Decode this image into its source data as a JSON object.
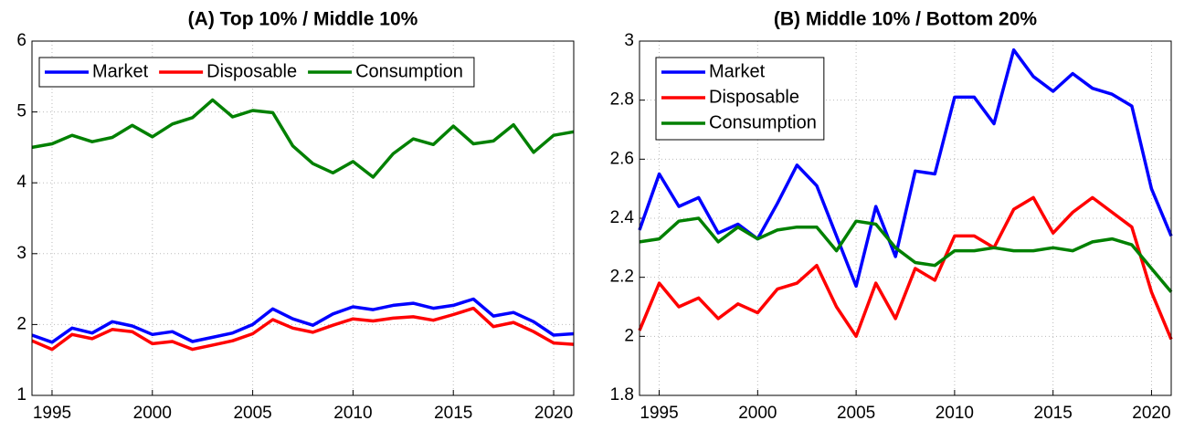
{
  "chart_data": [
    {
      "type": "line",
      "title": "(A) Top 10% / Middle 10%",
      "x": [
        1994,
        1995,
        1996,
        1997,
        1998,
        1999,
        2000,
        2001,
        2002,
        2003,
        2004,
        2005,
        2006,
        2007,
        2008,
        2009,
        2010,
        2011,
        2012,
        2013,
        2014,
        2015,
        2016,
        2017,
        2018,
        2019,
        2020,
        2021
      ],
      "xlim": [
        1994,
        2021
      ],
      "xticks": [
        1995,
        2000,
        2005,
        2010,
        2015,
        2020
      ],
      "ylim": [
        1,
        6
      ],
      "yticks": [
        1,
        2,
        3,
        4,
        5,
        6
      ],
      "grid": true,
      "legend": "top-left",
      "legend_orientation": "horizontal",
      "series": [
        {
          "name": "Market",
          "color": "#0000ff",
          "values": [
            1.85,
            1.75,
            1.95,
            1.88,
            2.04,
            1.98,
            1.86,
            1.9,
            1.76,
            1.82,
            1.88,
            2.0,
            2.22,
            2.08,
            1.99,
            2.15,
            2.25,
            2.21,
            2.27,
            2.3,
            2.23,
            2.27,
            2.36,
            2.12,
            2.17,
            2.04,
            1.85,
            1.87
          ]
        },
        {
          "name": "Disposable",
          "color": "#ff0000",
          "values": [
            1.77,
            1.65,
            1.86,
            1.8,
            1.93,
            1.9,
            1.73,
            1.76,
            1.65,
            1.71,
            1.77,
            1.87,
            2.07,
            1.95,
            1.89,
            1.99,
            2.08,
            2.05,
            2.09,
            2.11,
            2.06,
            2.14,
            2.23,
            1.97,
            2.03,
            1.9,
            1.74,
            1.72
          ]
        },
        {
          "name": "Consumption",
          "color": "#008000",
          "values": [
            4.5,
            4.55,
            4.67,
            4.58,
            4.64,
            4.81,
            4.65,
            4.83,
            4.92,
            5.17,
            4.93,
            5.02,
            4.99,
            4.52,
            4.27,
            4.14,
            4.3,
            4.08,
            4.41,
            4.62,
            4.54,
            4.8,
            4.55,
            4.59,
            4.82,
            4.43,
            4.67,
            4.72
          ]
        }
      ]
    },
    {
      "type": "line",
      "title": "(B) Middle 10% / Bottom 20%",
      "x": [
        1994,
        1995,
        1996,
        1997,
        1998,
        1999,
        2000,
        2001,
        2002,
        2003,
        2004,
        2005,
        2006,
        2007,
        2008,
        2009,
        2010,
        2011,
        2012,
        2013,
        2014,
        2015,
        2016,
        2017,
        2018,
        2019,
        2020,
        2021
      ],
      "xlim": [
        1994,
        2021
      ],
      "xticks": [
        1995,
        2000,
        2005,
        2010,
        2015,
        2020
      ],
      "ylim": [
        1.8,
        3
      ],
      "yticks": [
        1.8,
        2,
        2.2,
        2.4,
        2.6,
        2.8,
        3
      ],
      "grid": true,
      "legend": "top-left",
      "legend_orientation": "vertical",
      "series": [
        {
          "name": "Market",
          "color": "#0000ff",
          "values": [
            2.36,
            2.55,
            2.44,
            2.47,
            2.35,
            2.38,
            2.33,
            2.45,
            2.58,
            2.51,
            2.34,
            2.17,
            2.44,
            2.27,
            2.56,
            2.55,
            2.81,
            2.81,
            2.72,
            2.97,
            2.88,
            2.83,
            2.89,
            2.84,
            2.82,
            2.78,
            2.5,
            2.34
          ]
        },
        {
          "name": "Disposable",
          "color": "#ff0000",
          "values": [
            2.02,
            2.18,
            2.1,
            2.13,
            2.06,
            2.11,
            2.08,
            2.16,
            2.18,
            2.24,
            2.1,
            2.0,
            2.18,
            2.06,
            2.23,
            2.19,
            2.34,
            2.34,
            2.3,
            2.43,
            2.47,
            2.35,
            2.42,
            2.47,
            2.42,
            2.37,
            2.15,
            1.99
          ]
        },
        {
          "name": "Consumption",
          "color": "#008000",
          "values": [
            2.32,
            2.33,
            2.39,
            2.4,
            2.32,
            2.37,
            2.33,
            2.36,
            2.37,
            2.37,
            2.29,
            2.39,
            2.38,
            2.3,
            2.25,
            2.24,
            2.29,
            2.29,
            2.3,
            2.29,
            2.29,
            2.3,
            2.29,
            2.32,
            2.33,
            2.31,
            2.23,
            2.15
          ]
        }
      ]
    }
  ]
}
